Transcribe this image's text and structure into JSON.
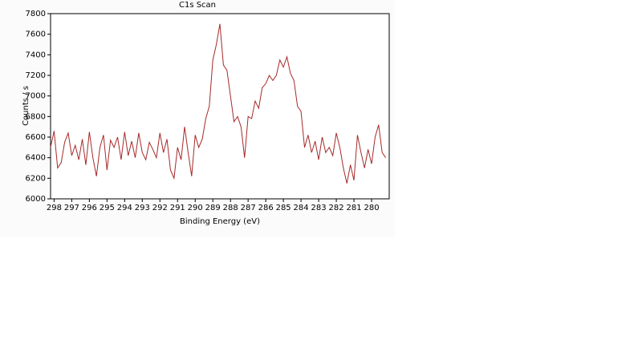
{
  "chart_data": {
    "type": "line",
    "title": "C1s Scan",
    "x_label": "Binding Energy (eV)",
    "y_label": "Counts / s",
    "x": [
      298.2,
      298.0,
      297.8,
      297.6,
      297.4,
      297.2,
      297.0,
      296.8,
      296.6,
      296.4,
      296.2,
      296.0,
      295.8,
      295.6,
      295.4,
      295.2,
      295.0,
      294.8,
      294.6,
      294.4,
      294.2,
      294.0,
      293.8,
      293.6,
      293.4,
      293.2,
      293.0,
      292.8,
      292.6,
      292.4,
      292.2,
      292.0,
      291.8,
      291.6,
      291.4,
      291.2,
      291.0,
      290.8,
      290.6,
      290.4,
      290.2,
      290.0,
      289.8,
      289.6,
      289.4,
      289.2,
      289.0,
      288.8,
      288.6,
      288.4,
      288.2,
      288.0,
      287.8,
      287.6,
      287.4,
      287.2,
      287.0,
      286.8,
      286.6,
      286.4,
      286.2,
      286.0,
      285.8,
      285.6,
      285.4,
      285.2,
      285.0,
      284.8,
      284.6,
      284.4,
      284.2,
      284.0,
      283.8,
      283.6,
      283.4,
      283.2,
      283.0,
      282.8,
      282.6,
      282.4,
      282.2,
      282.0,
      281.8,
      281.6,
      281.4,
      281.2,
      281.0,
      280.8,
      280.6,
      280.4,
      280.2,
      280.0,
      279.8,
      279.6,
      279.4,
      279.2
    ],
    "values": [
      6500,
      6660,
      6300,
      6350,
      6550,
      6640,
      6420,
      6520,
      6380,
      6580,
      6330,
      6650,
      6400,
      6220,
      6500,
      6620,
      6280,
      6570,
      6500,
      6600,
      6380,
      6650,
      6420,
      6560,
      6400,
      6640,
      6450,
      6380,
      6550,
      6480,
      6400,
      6640,
      6450,
      6580,
      6280,
      6200,
      6500,
      6380,
      6700,
      6450,
      6220,
      6620,
      6500,
      6580,
      6780,
      6900,
      7350,
      7500,
      7700,
      7300,
      7250,
      7000,
      6750,
      6800,
      6700,
      6400,
      6800,
      6780,
      6950,
      6880,
      7080,
      7120,
      7200,
      7150,
      7200,
      7350,
      7280,
      7380,
      7220,
      7150,
      6900,
      6850,
      6500,
      6620,
      6450,
      6560,
      6380,
      6600,
      6450,
      6500,
      6420,
      6640,
      6500,
      6300,
      6150,
      6330,
      6180,
      6620,
      6450,
      6300,
      6480,
      6340,
      6600,
      6720,
      6450,
      6400
    ],
    "color": "#a52a2a",
    "xlim": [
      298.2,
      279.0
    ],
    "xticks": [
      298,
      297,
      296,
      295,
      294,
      293,
      292,
      291,
      290,
      289,
      288,
      287,
      286,
      285,
      284,
      283,
      282,
      281,
      280
    ],
    "ylim": [
      6000,
      7800
    ],
    "yticks": [
      6000,
      6200,
      6400,
      6600,
      6800,
      7000,
      7200,
      7400,
      7600,
      7800
    ]
  }
}
